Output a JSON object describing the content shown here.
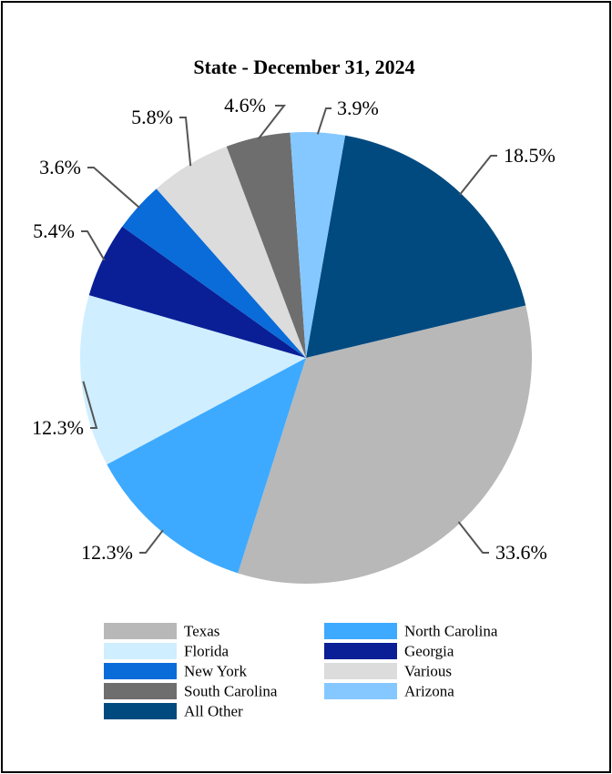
{
  "chart_data": {
    "type": "pie",
    "title": "State - December 31, 2024",
    "start_angle_deg": 10,
    "direction": "clockwise",
    "slices": [
      {
        "label": "All Other",
        "value": 18.5,
        "display": "18.5%",
        "color": "#004a80"
      },
      {
        "label": "Texas",
        "value": 33.6,
        "display": "33.6%",
        "color": "#b8b8b8"
      },
      {
        "label": "North Carolina",
        "value": 12.3,
        "display": "12.3%",
        "color": "#3eaaff"
      },
      {
        "label": "Florida",
        "value": 12.3,
        "display": "12.3%",
        "color": "#cfeeff"
      },
      {
        "label": "Georgia",
        "value": 5.4,
        "display": "5.4%",
        "color": "#0a1f96"
      },
      {
        "label": "New York",
        "value": 3.6,
        "display": "3.6%",
        "color": "#0a6cd8"
      },
      {
        "label": "Various",
        "value": 5.8,
        "display": "5.8%",
        "color": "#dcdcdc"
      },
      {
        "label": "South Carolina",
        "value": 4.6,
        "display": "4.6%",
        "color": "#6e6e6e"
      },
      {
        "label": "Arizona",
        "value": 3.9,
        "display": "3.9%",
        "color": "#85c8ff"
      }
    ],
    "legend": {
      "placement": "bottom",
      "columns": 2,
      "order": [
        "Texas",
        "North Carolina",
        "Florida",
        "Georgia",
        "New York",
        "Various",
        "South Carolina",
        "Arizona",
        "All Other"
      ]
    }
  }
}
